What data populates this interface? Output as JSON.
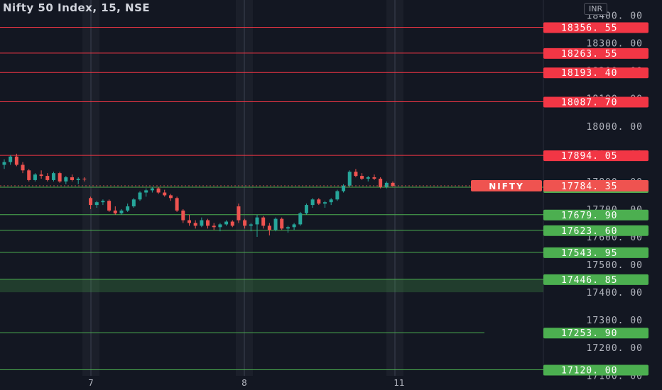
{
  "header": {
    "title": "Nifty 50 Index, 15, NSE",
    "currency": "INR"
  },
  "chart_data": {
    "type": "candlestick",
    "symbol": "NIFTY",
    "last_price": "17784.35",
    "y_axis_ticks": [
      "18400.00",
      "18300.00",
      "18200.00",
      "18100.00",
      "18000.00",
      "17900.00",
      "17800.00",
      "17700.00",
      "17600.00",
      "17500.00",
      "17400.00",
      "17300.00",
      "17200.00",
      "17100.00"
    ],
    "x_axis_ticks": [
      "7",
      "8",
      "11"
    ],
    "resistance_levels": [
      "18356.55",
      "18263.55",
      "18193.40",
      "18087.70",
      "17894.05"
    ],
    "support_levels": [
      "17779.15",
      "17679.90",
      "17623.60",
      "17543.95",
      "17446.85",
      "17253.90",
      "17120.00"
    ],
    "support_zone": [
      17400,
      17446.85
    ],
    "colors": {
      "up": "#26a69a",
      "down": "#ef5350",
      "resistance": "#f23645",
      "support": "#4caf50",
      "background": "#131722"
    },
    "candles": [
      [
        17860,
        17880,
        17845,
        17870
      ],
      [
        17870,
        17895,
        17860,
        17890
      ],
      [
        17890,
        17900,
        17855,
        17860
      ],
      [
        17860,
        17870,
        17830,
        17840
      ],
      [
        17840,
        17845,
        17800,
        17805
      ],
      [
        17805,
        17830,
        17800,
        17825
      ],
      [
        17825,
        17840,
        17810,
        17820
      ],
      [
        17820,
        17830,
        17800,
        17805
      ],
      [
        17805,
        17835,
        17800,
        17830
      ],
      [
        17830,
        17835,
        17795,
        17800
      ],
      [
        17800,
        17820,
        17790,
        17815
      ],
      [
        17815,
        17825,
        17800,
        17805
      ],
      [
        17805,
        17815,
        17790,
        17810
      ],
      [
        17810,
        17815,
        17800,
        17808
      ],
      [
        17740,
        17745,
        17700,
        17715
      ],
      [
        17715,
        17730,
        17705,
        17725
      ],
      [
        17725,
        17735,
        17715,
        17730
      ],
      [
        17730,
        17735,
        17690,
        17695
      ],
      [
        17695,
        17710,
        17680,
        17685
      ],
      [
        17685,
        17700,
        17680,
        17695
      ],
      [
        17695,
        17720,
        17690,
        17710
      ],
      [
        17710,
        17740,
        17705,
        17735
      ],
      [
        17735,
        17765,
        17730,
        17760
      ],
      [
        17760,
        17775,
        17745,
        17768
      ],
      [
        17768,
        17780,
        17760,
        17775
      ],
      [
        17775,
        17780,
        17755,
        17760
      ],
      [
        17760,
        17770,
        17745,
        17750
      ],
      [
        17750,
        17755,
        17730,
        17740
      ],
      [
        17740,
        17745,
        17690,
        17695
      ],
      [
        17695,
        17700,
        17650,
        17660
      ],
      [
        17660,
        17680,
        17640,
        17650
      ],
      [
        17650,
        17660,
        17630,
        17640
      ],
      [
        17640,
        17670,
        17635,
        17660
      ],
      [
        17660,
        17665,
        17630,
        17640
      ],
      [
        17640,
        17650,
        17625,
        17635
      ],
      [
        17635,
        17650,
        17620,
        17645
      ],
      [
        17645,
        17660,
        17640,
        17655
      ],
      [
        17655,
        17660,
        17635,
        17640
      ],
      [
        17710,
        17720,
        17650,
        17660
      ],
      [
        17660,
        17665,
        17630,
        17640
      ],
      [
        17640,
        17650,
        17620,
        17645
      ],
      [
        17645,
        17680,
        17600,
        17670
      ],
      [
        17670,
        17675,
        17630,
        17640
      ],
      [
        17640,
        17650,
        17605,
        17625
      ],
      [
        17625,
        17670,
        17620,
        17665
      ],
      [
        17665,
        17670,
        17625,
        17630
      ],
      [
        17630,
        17640,
        17615,
        17635
      ],
      [
        17635,
        17650,
        17625,
        17645
      ],
      [
        17645,
        17690,
        17640,
        17685
      ],
      [
        17685,
        17720,
        17680,
        17715
      ],
      [
        17715,
        17740,
        17705,
        17735
      ],
      [
        17735,
        17740,
        17715,
        17720
      ],
      [
        17720,
        17730,
        17705,
        17725
      ],
      [
        17725,
        17740,
        17715,
        17735
      ],
      [
        17735,
        17770,
        17730,
        17765
      ],
      [
        17765,
        17790,
        17760,
        17785
      ],
      [
        17785,
        17840,
        17780,
        17835
      ],
      [
        17835,
        17845,
        17815,
        17820
      ],
      [
        17820,
        17830,
        17805,
        17810
      ],
      [
        17810,
        17820,
        17800,
        17815
      ],
      [
        17815,
        17825,
        17805,
        17810
      ],
      [
        17810,
        17815,
        17775,
        17780
      ],
      [
        17780,
        17800,
        17775,
        17795
      ],
      [
        17795,
        17800,
        17780,
        17784.35
      ]
    ]
  }
}
